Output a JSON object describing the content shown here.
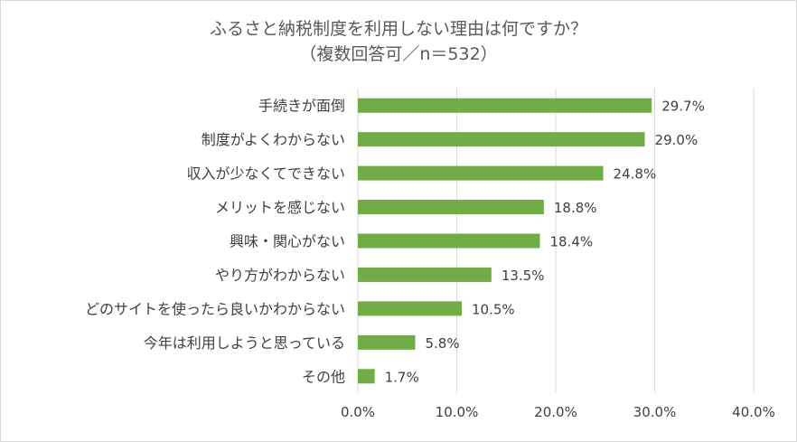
{
  "chart_data": {
    "type": "bar",
    "orientation": "horizontal",
    "title": "ふるさと納税制度を利用しない理由は何ですか？",
    "subtitle": "（複数回答可／n＝532）",
    "categories": [
      "手続きが面倒",
      "制度がよくわからない",
      "収入が少なくてできない",
      "メリットを感じない",
      "興味・関心がない",
      "やり方がわからない",
      "どのサイトを使ったら良いかわからない",
      "今年は利用しようと思っている",
      "その他"
    ],
    "values": [
      29.7,
      29.0,
      24.8,
      18.8,
      18.4,
      13.5,
      10.5,
      5.8,
      1.7
    ],
    "value_labels": [
      "29.7%",
      "29.0%",
      "24.8%",
      "18.8%",
      "18.4%",
      "13.5%",
      "10.5%",
      "5.8%",
      "1.7%"
    ],
    "xlim": [
      0,
      40
    ],
    "x_ticks": [
      0,
      10,
      20,
      30,
      40
    ],
    "x_tick_labels": [
      "0.0%",
      "10.0%",
      "20.0%",
      "30.0%",
      "40.0%"
    ],
    "grid": "vertical",
    "bar_color": "#70ad47",
    "grid_color": "#d9d9d9",
    "text_color": "#404040"
  }
}
